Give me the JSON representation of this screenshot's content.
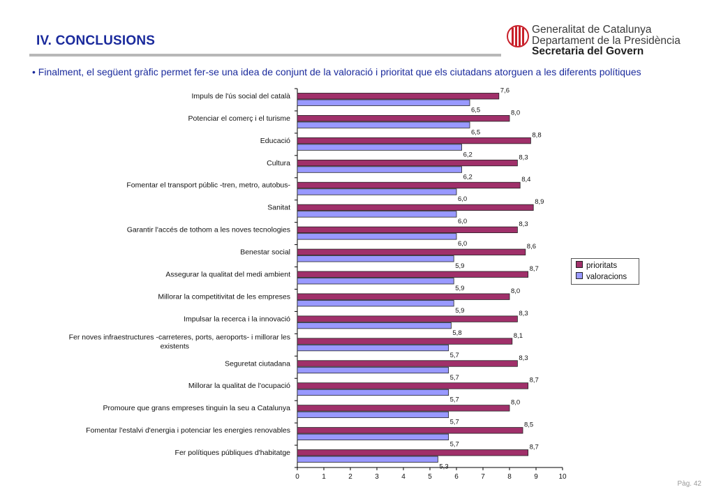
{
  "header": {
    "title": "IV. CONCLUSIONS",
    "logo_lines": [
      "Generalitat de Catalunya",
      "Departament de la Presidència",
      "Secretaria del Govern"
    ]
  },
  "intro_text": "• Finalment, el següent gràfic permet fer-se una idea de conjunt de la valoració i prioritat que els ciutadans atorguen a les diferents polítiques",
  "page_number": "Pàg. 42",
  "colors": {
    "title": "#1a2a9c",
    "prioritats": "#a0306a",
    "valoracions": "#9999ff",
    "logo_red": "#c8202a"
  },
  "chart_data": {
    "type": "bar",
    "orientation": "horizontal",
    "categories": [
      [
        "Impuls de l'ús social del català"
      ],
      [
        "Potenciar el comerç i el turisme"
      ],
      [
        "Educació"
      ],
      [
        "Cultura"
      ],
      [
        "Fomentar el transport públic -tren, metro, autobus-"
      ],
      [
        "Sanitat"
      ],
      [
        "Garantir l'accés de tothom a les noves tecnologies"
      ],
      [
        "Benestar social"
      ],
      [
        "Assegurar la qualitat del medi ambient"
      ],
      [
        "Millorar la competitivitat de les empreses"
      ],
      [
        "Impulsar la recerca i la innovació"
      ],
      [
        "Fer noves infraestructures -carreteres, ports, aeroports- i millorar les",
        "existents"
      ],
      [
        "Seguretat ciutadana"
      ],
      [
        "Millorar la qualitat de l'ocupació"
      ],
      [
        "Promoure que grans empreses tinguin la seu a Catalunya"
      ],
      [
        "Fomentar l'estalvi d'energia i potenciar les energies renovables"
      ],
      [
        "Fer polítiques públiques d'habitatge"
      ]
    ],
    "series": [
      {
        "name": "prioritats",
        "values": [
          7.6,
          8.0,
          8.8,
          8.3,
          8.4,
          8.9,
          8.3,
          8.6,
          8.7,
          8.0,
          8.3,
          8.1,
          8.3,
          8.7,
          8.0,
          8.5,
          8.7
        ],
        "labels": [
          "7,6",
          "8,0",
          "8,8",
          "8,3",
          "8,4",
          "8,9",
          "8,3",
          "8,6",
          "8,7",
          "8,0",
          "8,3",
          "8,1",
          "8,3",
          "8,7",
          "8,0",
          "8,5",
          "8,7"
        ]
      },
      {
        "name": "valoracions",
        "values": [
          6.5,
          6.5,
          6.2,
          6.2,
          6.0,
          6.0,
          6.0,
          5.9,
          5.9,
          5.9,
          5.8,
          5.7,
          5.7,
          5.7,
          5.7,
          5.7,
          5.3
        ],
        "labels": [
          "6,5",
          "6,5",
          "6,2",
          "6,2",
          "6,0",
          "6,0",
          "6,0",
          "5,9",
          "5,9",
          "5,9",
          "5,8",
          "5,7",
          "5,7",
          "5,7",
          "5,7",
          "5,7",
          "5,3"
        ]
      }
    ],
    "xlim": [
      0,
      10
    ],
    "xticks": [
      "0",
      "1",
      "2",
      "3",
      "4",
      "5",
      "6",
      "7",
      "8",
      "9",
      "10"
    ],
    "legend_position": "right",
    "grid": false
  }
}
